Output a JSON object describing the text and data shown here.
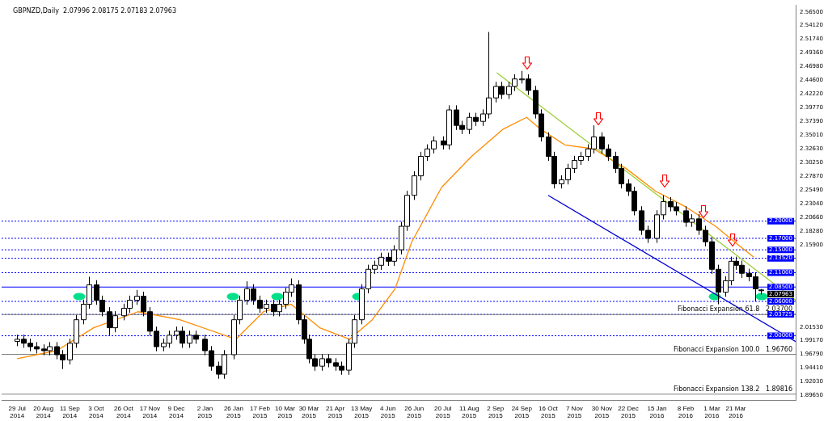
{
  "chart_data": {
    "type": "candlestick",
    "title": "GBPNZD,Daily  2.07996 2.08175 2.07183 2.07963",
    "color": "#000000",
    "colors": [
      "#ffffff",
      "#000000",
      "#000000",
      "#000000",
      "#000000",
      "#ffffff",
      "#000000",
      "#000000",
      "#ffffff",
      "#ffffff",
      "#ffffff",
      "#ffffff",
      "#000000",
      "#000000",
      "#000000",
      "#ffffff",
      "#ffffff",
      "#ffffff",
      "#ffffff",
      "#000000",
      "#000000",
      "#000000",
      "#ffffff",
      "#ffffff",
      "#ffffff",
      "#000000",
      "#ffffff",
      "#000000",
      "#000000",
      "#000000",
      "#000000",
      "#ffffff",
      "#ffffff",
      "#ffffff",
      "#ffffff",
      "#000000",
      "#000000",
      "#ffffff",
      "#000000",
      "#ffffff",
      "#ffffff",
      "#ffffff",
      "#000000",
      "#000000",
      "#000000",
      "#000000",
      "#ffffff",
      "#000000",
      "#000000",
      "#000000",
      "#ffffff",
      "#ffffff",
      "#ffffff",
      "#ffffff",
      "#ffffff",
      "#ffffff",
      "#000000",
      "#ffffff",
      "#ffffff",
      "#ffffff",
      "#ffffff",
      "#ffffff",
      "#ffffff",
      "#ffffff",
      "#000000",
      "#ffffff",
      "#000000",
      "#000000",
      "#ffffff",
      "#000000",
      "#ffffff",
      "#ffffff",
      "#ffffff",
      "#000000",
      "#ffffff",
      "#ffffff",
      "#ffffff",
      "#000000",
      "#000000",
      "#000000",
      "#000000",
      "#000000",
      "#ffffff",
      "#ffffff",
      "#ffffff",
      "#ffffff",
      "#ffffff",
      "#ffffff",
      "#000000",
      "#000000",
      "#000000",
      "#000000",
      "#000000",
      "#000000",
      "#000000",
      "#000000",
      "#ffffff",
      "#ffffff",
      "#000000",
      "#000000",
      "#000000",
      "#ffffff",
      "#000000",
      "#000000",
      "#000000",
      "#000000",
      "#ffffff",
      "#ffffff",
      "#000000",
      "#000000",
      "#000000",
      "#000000",
      "#000000"
    ],
    "x": [
      "2014-07-29",
      "2014-08-03",
      "2014-08-09",
      "2014-08-14",
      "2014-08-20",
      "2014-08-25",
      "2014-08-31",
      "2014-09-05",
      "2014-09-11",
      "2014-09-16",
      "2014-09-22",
      "2014-09-27",
      "2014-10-03",
      "2014-10-08",
      "2014-10-14",
      "2014-10-19",
      "2014-10-26",
      "2014-10-31",
      "2014-11-06",
      "2014-11-11",
      "2014-11-17",
      "2014-11-22",
      "2014-11-28",
      "2014-12-03",
      "2014-12-09",
      "2014-12-14",
      "2014-12-20",
      "2014-12-25",
      "2015-01-02",
      "2015-01-07",
      "2015-01-13",
      "2015-01-18",
      "2015-01-26",
      "2015-01-31",
      "2015-02-06",
      "2015-02-11",
      "2015-02-17",
      "2015-02-22",
      "2015-02-28",
      "2015-03-05",
      "2015-03-10",
      "2015-03-15",
      "2015-03-21",
      "2015-03-26",
      "2015-03-30",
      "2015-04-04",
      "2015-04-10",
      "2015-04-15",
      "2015-04-21",
      "2015-04-26",
      "2015-05-02",
      "2015-05-07",
      "2015-05-13",
      "2015-05-18",
      "2015-05-24",
      "2015-05-29",
      "2015-06-04",
      "2015-06-09",
      "2015-06-15",
      "2015-06-20",
      "2015-06-26",
      "2015-07-01",
      "2015-07-07",
      "2015-07-12",
      "2015-07-20",
      "2015-07-25",
      "2015-07-31",
      "2015-08-05",
      "2015-08-11",
      "2015-08-16",
      "2015-08-22",
      "2015-08-27",
      "2015-09-02",
      "2015-09-07",
      "2015-09-13",
      "2015-09-18",
      "2015-09-24",
      "2015-09-29",
      "2015-10-05",
      "2015-10-10",
      "2015-10-16",
      "2015-10-21",
      "2015-10-27",
      "2015-11-01",
      "2015-11-07",
      "2015-11-12",
      "2015-11-18",
      "2015-11-23",
      "2015-11-30",
      "2015-12-05",
      "2015-12-11",
      "2015-12-16",
      "2015-12-22",
      "2015-12-27",
      "2016-01-02",
      "2016-01-07",
      "2016-01-15",
      "2016-01-20",
      "2016-01-26",
      "2016-01-31",
      "2016-02-08",
      "2016-02-13",
      "2016-02-19",
      "2016-02-24",
      "2016-03-01",
      "2016-03-06",
      "2016-03-12",
      "2016-03-17",
      "2016-03-21",
      "2016-03-26",
      "2016-04-01",
      "2016-04-06",
      "2016-04-11"
    ],
    "ohlc": [
      [
        1.99,
        2.002,
        1.982,
        1.994
      ],
      [
        1.994,
        2.002,
        1.979,
        1.987
      ],
      [
        1.987,
        1.995,
        1.973,
        1.981
      ],
      [
        1.981,
        1.989,
        1.969,
        1.977
      ],
      [
        1.977,
        1.985,
        1.966,
        1.974
      ],
      [
        1.974,
        1.989,
        1.966,
        1.981
      ],
      [
        1.981,
        1.989,
        1.959,
        1.967
      ],
      [
        1.967,
        1.975,
        1.942,
        1.958
      ],
      [
        1.958,
        1.995,
        1.95,
        1.987
      ],
      [
        1.987,
        2.036,
        1.979,
        2.028
      ],
      [
        2.028,
        2.063,
        2.02,
        2.055
      ],
      [
        2.055,
        2.103,
        2.047,
        2.089
      ],
      [
        2.089,
        2.097,
        2.054,
        2.062
      ],
      [
        2.062,
        2.07,
        2.034,
        2.042
      ],
      [
        2.042,
        2.05,
        2.001,
        2.014
      ],
      [
        2.014,
        2.043,
        2.006,
        2.035
      ],
      [
        2.035,
        2.056,
        2.027,
        2.048
      ],
      [
        2.048,
        2.07,
        2.04,
        2.062
      ],
      [
        2.062,
        2.08,
        2.054,
        2.069
      ],
      [
        2.069,
        2.077,
        2.034,
        2.042
      ],
      [
        2.042,
        2.05,
        2.0,
        2.008
      ],
      [
        2.008,
        2.016,
        1.973,
        1.981
      ],
      [
        1.981,
        1.995,
        1.973,
        1.987
      ],
      [
        1.987,
        2.009,
        1.979,
        2.001
      ],
      [
        2.001,
        2.016,
        1.993,
        2.008
      ],
      [
        2.008,
        2.016,
        1.979,
        1.987
      ],
      [
        1.987,
        2.009,
        1.979,
        2.001
      ],
      [
        2.001,
        2.009,
        1.986,
        1.994
      ],
      [
        1.994,
        2.002,
        1.966,
        1.974
      ],
      [
        1.974,
        1.982,
        1.939,
        1.947
      ],
      [
        1.947,
        1.955,
        1.925,
        1.933
      ],
      [
        1.933,
        1.975,
        1.925,
        1.967
      ],
      [
        1.967,
        2.036,
        1.959,
        2.028
      ],
      [
        2.028,
        2.07,
        2.02,
        2.062
      ],
      [
        2.062,
        2.095,
        2.054,
        2.082
      ],
      [
        2.082,
        2.09,
        2.054,
        2.062
      ],
      [
        2.062,
        2.07,
        2.04,
        2.048
      ],
      [
        2.048,
        2.063,
        2.04,
        2.055
      ],
      [
        2.055,
        2.063,
        2.034,
        2.042
      ],
      [
        2.042,
        2.063,
        2.034,
        2.055
      ],
      [
        2.055,
        2.084,
        2.047,
        2.076
      ],
      [
        2.076,
        2.1,
        2.068,
        2.089
      ],
      [
        2.089,
        2.097,
        2.02,
        2.028
      ],
      [
        2.028,
        2.036,
        1.986,
        1.994
      ],
      [
        1.994,
        2.002,
        1.952,
        1.96
      ],
      [
        1.96,
        1.968,
        1.939,
        1.947
      ],
      [
        1.947,
        1.968,
        1.939,
        1.96
      ],
      [
        1.96,
        1.968,
        1.945,
        1.953
      ],
      [
        1.953,
        1.961,
        1.939,
        1.947
      ],
      [
        1.947,
        1.955,
        1.932,
        1.94
      ],
      [
        1.94,
        1.995,
        1.932,
        1.987
      ],
      [
        1.987,
        2.036,
        1.979,
        2.028
      ],
      [
        2.028,
        2.09,
        2.02,
        2.082
      ],
      [
        2.082,
        2.124,
        2.074,
        2.116
      ],
      [
        2.116,
        2.131,
        2.108,
        2.123
      ],
      [
        2.123,
        2.145,
        2.115,
        2.137
      ],
      [
        2.137,
        2.145,
        2.122,
        2.13
      ],
      [
        2.13,
        2.158,
        2.122,
        2.15
      ],
      [
        2.15,
        2.199,
        2.142,
        2.191
      ],
      [
        2.191,
        2.253,
        2.183,
        2.245
      ],
      [
        2.245,
        2.287,
        2.237,
        2.279
      ],
      [
        2.279,
        2.321,
        2.271,
        2.313
      ],
      [
        2.313,
        2.334,
        2.305,
        2.326
      ],
      [
        2.326,
        2.348,
        2.318,
        2.34
      ],
      [
        2.34,
        2.348,
        2.325,
        2.333
      ],
      [
        2.333,
        2.402,
        2.325,
        2.394
      ],
      [
        2.394,
        2.402,
        2.359,
        2.367
      ],
      [
        2.367,
        2.375,
        2.352,
        2.36
      ],
      [
        2.36,
        2.389,
        2.352,
        2.381
      ],
      [
        2.381,
        2.389,
        2.366,
        2.374
      ],
      [
        2.374,
        2.395,
        2.366,
        2.387
      ],
      [
        2.387,
        2.53,
        2.379,
        2.415
      ],
      [
        2.415,
        2.443,
        2.407,
        2.435
      ],
      [
        2.435,
        2.443,
        2.413,
        2.421
      ],
      [
        2.421,
        2.443,
        2.413,
        2.435
      ],
      [
        2.435,
        2.456,
        2.427,
        2.448
      ],
      [
        2.448,
        2.462,
        2.44,
        2.448
      ],
      [
        2.448,
        2.456,
        2.42,
        2.428
      ],
      [
        2.428,
        2.436,
        2.379,
        2.387
      ],
      [
        2.387,
        2.395,
        2.339,
        2.347
      ],
      [
        2.347,
        2.355,
        2.305,
        2.313
      ],
      [
        2.313,
        2.321,
        2.257,
        2.265
      ],
      [
        2.265,
        2.28,
        2.257,
        2.272
      ],
      [
        2.272,
        2.3,
        2.264,
        2.292
      ],
      [
        2.292,
        2.314,
        2.284,
        2.306
      ],
      [
        2.306,
        2.321,
        2.298,
        2.313
      ],
      [
        2.313,
        2.334,
        2.305,
        2.326
      ],
      [
        2.326,
        2.367,
        2.318,
        2.347
      ],
      [
        2.347,
        2.355,
        2.318,
        2.326
      ],
      [
        2.326,
        2.334,
        2.305,
        2.313
      ],
      [
        2.313,
        2.321,
        2.284,
        2.292
      ],
      [
        2.292,
        2.3,
        2.257,
        2.265
      ],
      [
        2.265,
        2.273,
        2.244,
        2.252
      ],
      [
        2.252,
        2.26,
        2.21,
        2.218
      ],
      [
        2.218,
        2.226,
        2.176,
        2.184
      ],
      [
        2.184,
        2.192,
        2.162,
        2.17
      ],
      [
        2.17,
        2.219,
        2.162,
        2.211
      ],
      [
        2.211,
        2.245,
        2.203,
        2.234
      ],
      [
        2.234,
        2.242,
        2.217,
        2.225
      ],
      [
        2.225,
        2.233,
        2.21,
        2.218
      ],
      [
        2.218,
        2.226,
        2.19,
        2.198
      ],
      [
        2.198,
        2.212,
        2.19,
        2.204
      ],
      [
        2.204,
        2.212,
        2.176,
        2.184
      ],
      [
        2.184,
        2.192,
        2.156,
        2.164
      ],
      [
        2.164,
        2.172,
        2.108,
        2.116
      ],
      [
        2.116,
        2.124,
        2.055,
        2.076
      ],
      [
        2.076,
        2.104,
        2.068,
        2.096
      ],
      [
        2.096,
        2.138,
        2.088,
        2.13
      ],
      [
        2.13,
        2.138,
        2.115,
        2.123
      ],
      [
        2.123,
        2.131,
        2.101,
        2.109
      ],
      [
        2.109,
        2.117,
        2.095,
        2.103
      ],
      [
        2.103,
        2.111,
        2.06,
        2.082
      ],
      [
        2.07996,
        2.08175,
        2.07183,
        2.07963
      ]
    ],
    "series": [
      {
        "type": "line",
        "color": "#ff8c00",
        "x": [
          "2014-07-29",
          "2014-08-31",
          "2014-10-01",
          "2014-11-07",
          "2014-12-12",
          "2015-01-28",
          "2015-02-20",
          "2015-03-15",
          "2015-04-08",
          "2015-05-03",
          "2015-05-22",
          "2015-06-10",
          "2015-06-24",
          "2015-07-19",
          "2015-08-13",
          "2015-09-08",
          "2015-09-28",
          "2015-10-10",
          "2015-10-30",
          "2015-11-23",
          "2015-12-20",
          "2016-01-14",
          "2016-02-08",
          "2016-03-04",
          "2016-03-24",
          "2016-04-05"
        ],
        "values": [
          1.96,
          1.974,
          2.014,
          2.042,
          2.028,
          1.994,
          2.042,
          2.055,
          2.014,
          1.994,
          2.028,
          2.082,
          2.164,
          2.259,
          2.313,
          2.36,
          2.381,
          2.36,
          2.333,
          2.326,
          2.292,
          2.252,
          2.225,
          2.191,
          2.157,
          2.137
        ]
      },
      {
        "type": "line",
        "color": "#9acd32",
        "x": [
          "2015-09-03",
          "2016-05-10"
        ],
        "values": [
          2.459,
          2.062
        ]
      },
      {
        "type": "line",
        "color": "#0000cd",
        "x": [
          "2015-10-16",
          "2016-05-10"
        ],
        "values": [
          2.245,
          1.99
        ]
      }
    ],
    "xlim": [
      "2014-07-16",
      "2016-05-10"
    ],
    "xticks": [
      {
        "value": "2014-07-29",
        "label": "29 Jul 2014"
      },
      {
        "value": "2014-08-20",
        "label": "20 Aug 2014"
      },
      {
        "value": "2014-09-11",
        "label": "11 Sep 2014"
      },
      {
        "value": "2014-10-03",
        "label": "3 Oct 2014"
      },
      {
        "value": "2014-10-26",
        "label": "26 Oct 2014"
      },
      {
        "value": "2014-11-17",
        "label": "17 Nov 2014"
      },
      {
        "value": "2014-12-09",
        "label": "9 Dec 2014"
      },
      {
        "value": "2015-01-02",
        "label": "2 Jan 2015"
      },
      {
        "value": "2015-01-26",
        "label": "26 Jan 2015"
      },
      {
        "value": "2015-02-17",
        "label": "17 Feb 2015"
      },
      {
        "value": "2015-03-10",
        "label": "10 Mar 2015"
      },
      {
        "value": "2015-03-30",
        "label": "30 Mar 2015"
      },
      {
        "value": "2015-04-21",
        "label": "21 Apr 2015"
      },
      {
        "value": "2015-05-13",
        "label": "13 May 2015"
      },
      {
        "value": "2015-06-04",
        "label": "4 Jun 2015"
      },
      {
        "value": "2015-06-26",
        "label": "26 Jun 2015"
      },
      {
        "value": "2015-07-20",
        "label": "20 Jul 2015"
      },
      {
        "value": "2015-08-11",
        "label": "11 Aug 2015"
      },
      {
        "value": "2015-09-02",
        "label": "2 Sep 2015"
      },
      {
        "value": "2015-09-24",
        "label": "24 Sep 2015"
      },
      {
        "value": "2015-10-16",
        "label": "16 Oct 2015"
      },
      {
        "value": "2015-11-07",
        "label": "7 Nov 2015"
      },
      {
        "value": "2015-11-30",
        "label": "30 Nov 2015"
      },
      {
        "value": "2015-12-22",
        "label": "22 Dec 2015"
      },
      {
        "value": "2016-01-15",
        "label": "15 Jan 2016"
      },
      {
        "value": "2016-02-08",
        "label": "8 Feb 2016"
      },
      {
        "value": "2016-03-01",
        "label": "1 Mar 2016"
      },
      {
        "value": "2016-03-21",
        "label": "21 Mar 2016"
      }
    ],
    "ylim": [
      1.888,
      2.577
    ],
    "yticks": [
      {
        "value": 2.565,
        "label": "2.56500"
      },
      {
        "value": 2.5412,
        "label": "2.54120"
      },
      {
        "value": 2.5174,
        "label": "2.51740"
      },
      {
        "value": 2.4936,
        "label": "2.49360"
      },
      {
        "value": 2.4698,
        "label": "2.46980"
      },
      {
        "value": 2.446,
        "label": "2.44600"
      },
      {
        "value": 2.4222,
        "label": "2.42220"
      },
      {
        "value": 2.3977,
        "label": "2.39770"
      },
      {
        "value": 2.3739,
        "label": "2.37390"
      },
      {
        "value": 2.3501,
        "label": "2.35010"
      },
      {
        "value": 2.3263,
        "label": "2.32630"
      },
      {
        "value": 2.3025,
        "label": "2.30250"
      },
      {
        "value": 2.2787,
        "label": "2.27870"
      },
      {
        "value": 2.2549,
        "label": "2.25490"
      },
      {
        "value": 2.2304,
        "label": "2.23040"
      },
      {
        "value": 2.2066,
        "label": "2.20660"
      },
      {
        "value": 2.1828,
        "label": "2.18280"
      },
      {
        "value": 2.159,
        "label": "2.15900"
      },
      {
        "value": 2.0153,
        "label": "2.01530"
      },
      {
        "value": 1.9917,
        "label": "1.99170"
      },
      {
        "value": 1.9679,
        "label": "1.96790"
      },
      {
        "value": 1.9441,
        "label": "1.94410"
      },
      {
        "value": 1.9203,
        "label": "1.92030"
      },
      {
        "value": 1.8965,
        "label": "1.89650"
      }
    ],
    "ref_lines": [
      {
        "axis": "y",
        "value": 2.2,
        "label": "2.20000",
        "color": "#0000ff",
        "line_style": "dotted"
      },
      {
        "axis": "y",
        "value": 2.17,
        "label": "2.17000",
        "color": "#0000ff",
        "line_style": "dotted"
      },
      {
        "axis": "y",
        "value": 2.15,
        "label": "2.15000",
        "color": "#0000ff",
        "line_style": "dotted"
      },
      {
        "axis": "y",
        "value": 2.1352,
        "label": "2.13520",
        "color": "#0000ff",
        "line_style": "dotted"
      },
      {
        "axis": "y",
        "value": 2.11,
        "label": "2.11000",
        "color": "#0000ff",
        "line_style": "dotted"
      },
      {
        "axis": "y",
        "value": 2.085,
        "label": "2.08500",
        "color": "#0000ff",
        "line_style": "solid"
      },
      {
        "axis": "y",
        "value": 2.06,
        "label": "2.06000",
        "color": "#0000ff",
        "line_style": "dotted"
      },
      {
        "axis": "y",
        "value": 2.03725,
        "label": "2.03725",
        "color": "#0000ff",
        "line_style": "dotted"
      },
      {
        "axis": "y",
        "value": 2.0,
        "label": "2.00000",
        "color": "#0000ff",
        "line_style": "dotted"
      },
      {
        "axis": "y",
        "value": 2.037,
        "label": "Fibonacci Expansion 61.8   2.03700",
        "color": "#808080",
        "line_style": "solid"
      },
      {
        "axis": "y",
        "value": 1.9676,
        "label": "Fibonacci Expansion 100.0   1.96760",
        "color": "#808080",
        "line_style": "solid"
      },
      {
        "axis": "y",
        "value": 1.89816,
        "label": "Fibonacci Expansion 138.2   1.89816",
        "color": "#808080",
        "line_style": "solid"
      }
    ],
    "annotations": [
      "2.07963"
    ]
  }
}
